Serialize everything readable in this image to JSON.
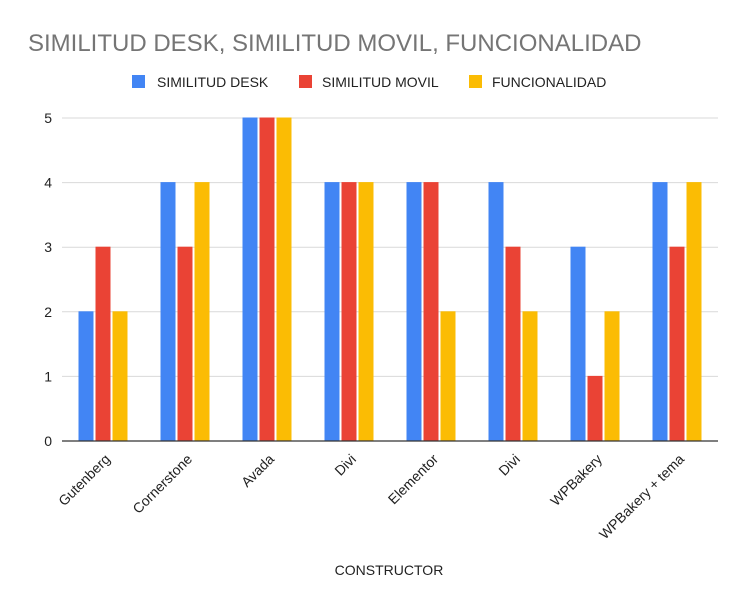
{
  "chart_data": {
    "type": "bar",
    "title": "SIMILITUD DESK, SIMILITUD MOVIL, FUNCIONALIDAD",
    "xlabel": "CONSTRUCTOR",
    "ylabel": "",
    "ylim": [
      0,
      5
    ],
    "yticks": [
      "0",
      "1",
      "2",
      "3",
      "4",
      "5"
    ],
    "grid": true,
    "legend_position": "top",
    "categories": [
      "Gutenberg",
      "Cornerstone",
      "Avada",
      "Divi",
      "Elementor",
      "Divi",
      "WPBakery",
      "WPBakery + tema"
    ],
    "series": [
      {
        "name": "SIMILITUD DESK",
        "color": "#4285f4",
        "values": [
          2,
          4,
          5,
          4,
          4,
          4,
          3,
          4
        ]
      },
      {
        "name": "SIMILITUD MOVIL",
        "color": "#ea4335",
        "values": [
          3,
          3,
          5,
          4,
          4,
          3,
          1,
          3
        ]
      },
      {
        "name": "FUNCIONALIDAD",
        "color": "#fbbc04",
        "values": [
          2,
          4,
          5,
          4,
          2,
          2,
          2,
          4
        ]
      }
    ]
  }
}
